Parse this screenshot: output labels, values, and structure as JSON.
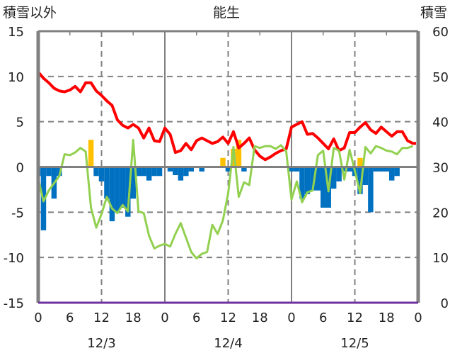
{
  "chart_data": {
    "type": "line+bar",
    "title": "能生",
    "ylabel_left": "積雪以外",
    "ylabel_right": "積雪",
    "ylim_left": [
      -15,
      15
    ],
    "yticks_left": [
      "15",
      "10",
      "5",
      "0",
      "-5",
      "-10",
      "-15"
    ],
    "ylim_right": [
      0,
      60
    ],
    "yticks_right": [
      "60",
      "50",
      "40",
      "30",
      "20",
      "10",
      "0"
    ],
    "xlim_hours": [
      0,
      72
    ],
    "xticks": [
      "0",
      "6",
      "12",
      "18",
      "0",
      "6",
      "12",
      "18",
      "0",
      "6",
      "12",
      "18",
      "0"
    ],
    "date_labels": [
      "12/3",
      "12/4",
      "12/5"
    ],
    "grid": true,
    "colors": {
      "red_line": "#ff0000",
      "green_line": "#92d050",
      "blue_bars": "#0070c0",
      "orange_bars": "#ffc000",
      "snow_depth": "#7030a0",
      "grid": "#808080"
    },
    "series": [
      {
        "name": "red",
        "axis": "left",
        "type": "line",
        "values": [
          10.5,
          9.8,
          9.3,
          8.7,
          8.4,
          8.3,
          8.5,
          8.9,
          8.3,
          9.3,
          9.3,
          8.4,
          7.9,
          7.3,
          6.8,
          5.2,
          4.6,
          4.3,
          4.7,
          4.3,
          3.2,
          4.3,
          2.9,
          2.8,
          4.3,
          3.6,
          1.6,
          1.8,
          2.6,
          1.9,
          2.9,
          3.2,
          2.9,
          2.6,
          2.8,
          3.3,
          2.6,
          3.9,
          2.1,
          2.6,
          3.2,
          1.9,
          1.2,
          0.8,
          1.1,
          1.5,
          1.8,
          2.0,
          4.4,
          4.7,
          5.0,
          3.6,
          3.7,
          3.2,
          2.6,
          2.0,
          3.1,
          1.8,
          2.1,
          3.8,
          3.8,
          4.4,
          4.9,
          4.1,
          3.7,
          4.4,
          3.9,
          3.4,
          3.9,
          3.9,
          2.9,
          2.6,
          2.6
        ]
      },
      {
        "name": "green",
        "axis": "left",
        "type": "line",
        "values": [
          -1.3,
          -3.8,
          -2.6,
          -1.8,
          -1.0,
          1.4,
          1.3,
          1.6,
          2.1,
          1.7,
          -4.5,
          -6.7,
          -5.2,
          -3.3,
          -4.6,
          -5.1,
          -4.2,
          -4.9,
          3.0,
          -4.9,
          -5.1,
          -7.6,
          -9.0,
          -8.7,
          -8.5,
          -8.8,
          -7.4,
          -6.2,
          -7.8,
          -9.4,
          -10.1,
          -9.6,
          -9.4,
          -6.4,
          -7.4,
          -5.9,
          -2.9,
          2.2,
          -3.3,
          -1.7,
          -2.0,
          2.3,
          2.1,
          2.3,
          2.3,
          2.0,
          2.4,
          1.7,
          -3.6,
          -1.6,
          -3.9,
          -2.8,
          -2.6,
          1.3,
          1.8,
          -2.7,
          2.1,
          1.8,
          -1.4,
          1.9,
          -0.4,
          -2.9,
          2.2,
          1.5,
          2.3,
          2.1,
          1.8,
          1.7,
          1.4,
          2.1,
          2.1,
          2.3
        ]
      },
      {
        "name": "blue",
        "axis": "left",
        "type": "bar",
        "values": [
          -1,
          -7,
          -1,
          -3.5,
          -1,
          0,
          0,
          0,
          0,
          0,
          0,
          -1,
          -1.6,
          -3.5,
          -6,
          -5,
          -4.5,
          -5.5,
          -3.5,
          -1,
          -1,
          -1.5,
          -1,
          -1,
          0,
          -0.5,
          -0.9,
          -1.5,
          -1,
          -0.5,
          0,
          -0.5,
          0,
          0,
          0,
          0,
          -0.5,
          0,
          0,
          -0.5,
          0,
          0,
          0,
          0,
          0,
          0,
          0,
          0,
          -0.5,
          -0.5,
          -3.5,
          -3,
          -2.6,
          -2.6,
          -4.5,
          -4.5,
          -2.4,
          -1.6,
          -0.5,
          -0.5,
          -1,
          -3,
          -2,
          -5,
          -0.5,
          -0.5,
          -0.5,
          -1.5,
          -1,
          0,
          0,
          0
        ]
      },
      {
        "name": "orange",
        "axis": "left",
        "type": "bar",
        "values": [
          0,
          0,
          0,
          0,
          0,
          0,
          0,
          0,
          0,
          0,
          3,
          0,
          0,
          0,
          0,
          0,
          0,
          0,
          0,
          0,
          0,
          0,
          0,
          0,
          0,
          0,
          0,
          0,
          0,
          0,
          0,
          0,
          0,
          0,
          0,
          1,
          0,
          2,
          3,
          0,
          0,
          0,
          0,
          0,
          0,
          0,
          0,
          0,
          0,
          0,
          0,
          0,
          0,
          0,
          0,
          0,
          0,
          0,
          0,
          0,
          0,
          1,
          0,
          0,
          0,
          0,
          0,
          0,
          0,
          0,
          0,
          0
        ]
      },
      {
        "name": "snow_depth",
        "axis": "right",
        "type": "line",
        "values": [
          0,
          0
        ]
      }
    ]
  }
}
